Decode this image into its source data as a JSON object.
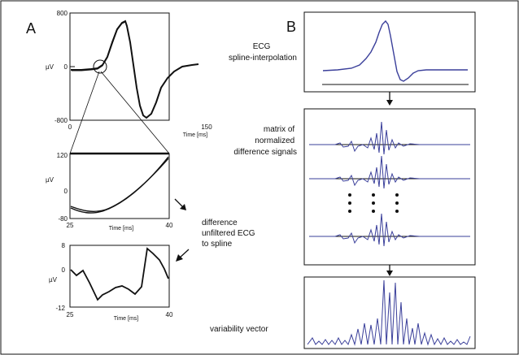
{
  "panels": {
    "a": {
      "letter": "A",
      "top_plot": {
        "y_unit": "µV",
        "y_ticks": [
          "800",
          "0",
          "-800"
        ],
        "x_ticks": [
          "0",
          "150"
        ],
        "x_label": "Time [ms]"
      },
      "mid_plot": {
        "y_unit": "µV",
        "y_ticks": [
          "120",
          "0",
          "-80"
        ],
        "x_ticks": [
          "25",
          "40"
        ],
        "x_label": "Time [ms]"
      },
      "bottom_plot": {
        "y_unit": "µV",
        "y_ticks": [
          "8",
          "0",
          "-12"
        ],
        "x_ticks": [
          "25",
          "40"
        ],
        "x_label": "Time [ms]"
      },
      "difference_label": [
        "difference",
        "unfiltered ECG",
        "to spline"
      ]
    },
    "b": {
      "letter": "B",
      "ecg_label": [
        "ECG",
        "spline-interpolation"
      ],
      "matrix_label": [
        "matrix of",
        "normalized",
        "difference signals"
      ],
      "variability_label": "variability vector"
    }
  },
  "colors": {
    "signal_blue": "#3a3f9a",
    "axis": "#111111"
  }
}
